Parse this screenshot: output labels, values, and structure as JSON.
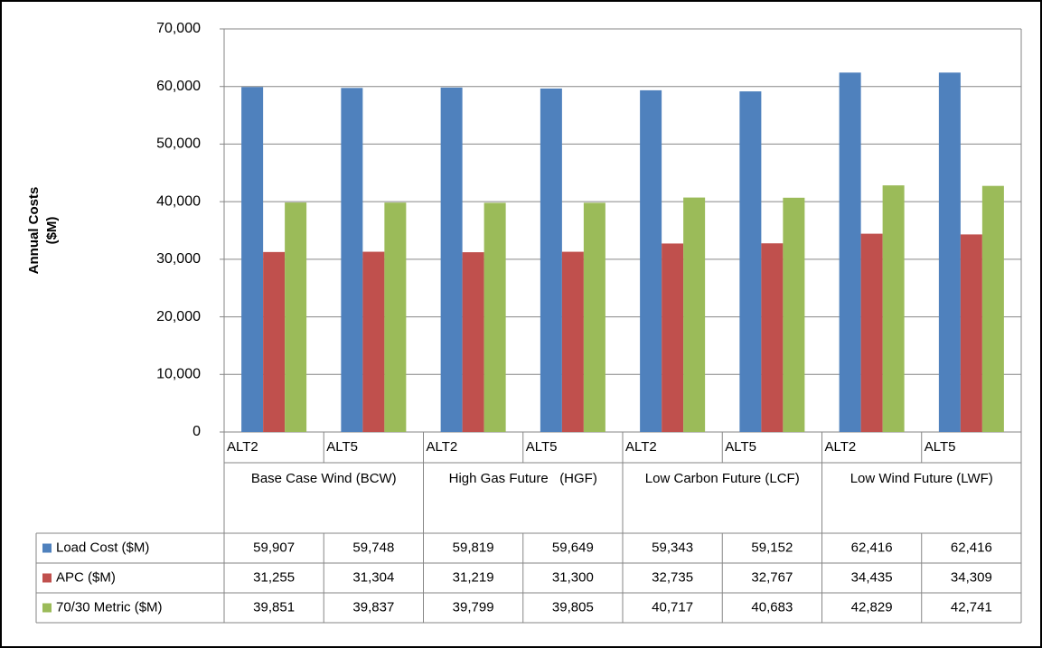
{
  "chart_data": {
    "type": "bar",
    "y_label": [
      "Annual Costs",
      "($M)"
    ],
    "categories": [
      "ALT2",
      "ALT5",
      "ALT2",
      "ALT5",
      "ALT2",
      "ALT5",
      "ALT2",
      "ALT5"
    ],
    "groups": [
      "Base Case Wind (BCW)",
      "High Gas Future   (HGF)",
      "Low Carbon Future (LCF)",
      "Low Wind Future (LWF)"
    ],
    "series": [
      {
        "name": "Load Cost ($M)",
        "color": "#4f81bd",
        "values": [
          59907,
          59748,
          59819,
          59649,
          59343,
          59152,
          62416,
          62416
        ],
        "value_labels": [
          "59,907",
          "59,748",
          "59,819",
          "59,649",
          "59,343",
          "59,152",
          "62,416",
          "62,416"
        ]
      },
      {
        "name": "APC ($M)",
        "color": "#c0504d",
        "values": [
          31255,
          31304,
          31219,
          31300,
          32735,
          32767,
          34435,
          34309
        ],
        "value_labels": [
          "31,255",
          "31,304",
          "31,219",
          "31,300",
          "32,735",
          "32,767",
          "34,435",
          "34,309"
        ]
      },
      {
        "name": "70/30 Metric ($M)",
        "color": "#9bbb59",
        "values": [
          39851,
          39837,
          39799,
          39805,
          40717,
          40683,
          42829,
          42741
        ],
        "value_labels": [
          "39,851",
          "39,837",
          "39,799",
          "39,805",
          "40,717",
          "40,683",
          "42,829",
          "42,741"
        ]
      }
    ],
    "ylim": [
      0,
      70000
    ],
    "yticks": [
      0,
      {
        "value": 10000,
        "label": "10,000"
      },
      {
        "value": 20000,
        "label": "20,000"
      },
      {
        "value": 30000,
        "label": "30,000"
      },
      {
        "value": 40000,
        "label": "40,000"
      },
      {
        "value": 50000,
        "label": "50,000"
      },
      {
        "value": 60000,
        "label": "60,000"
      },
      {
        "value": 70000,
        "label": "70,000"
      }
    ],
    "grid": true
  }
}
